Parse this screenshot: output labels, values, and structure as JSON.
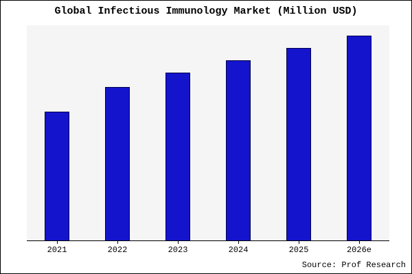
{
  "title": "Global Infectious Immunology Market (Million USD)",
  "source": "Source: Prof Research",
  "colors": {
    "bar_fill": "#1414cc",
    "bar_border": "#00004d",
    "plot_background": "#f5f5f5",
    "frame_border": "#000000"
  },
  "chart_data": {
    "type": "bar",
    "title": "Global Infectious Immunology Market (Million USD)",
    "xlabel": "",
    "ylabel": "",
    "categories": [
      "2021",
      "2022",
      "2023",
      "2024",
      "2025",
      "2026e"
    ],
    "values": [
      63,
      75,
      82,
      88,
      94,
      100
    ],
    "ylim": [
      0,
      105
    ],
    "grid": false,
    "legend": false,
    "annotations": [
      "Source: Prof Research"
    ]
  }
}
